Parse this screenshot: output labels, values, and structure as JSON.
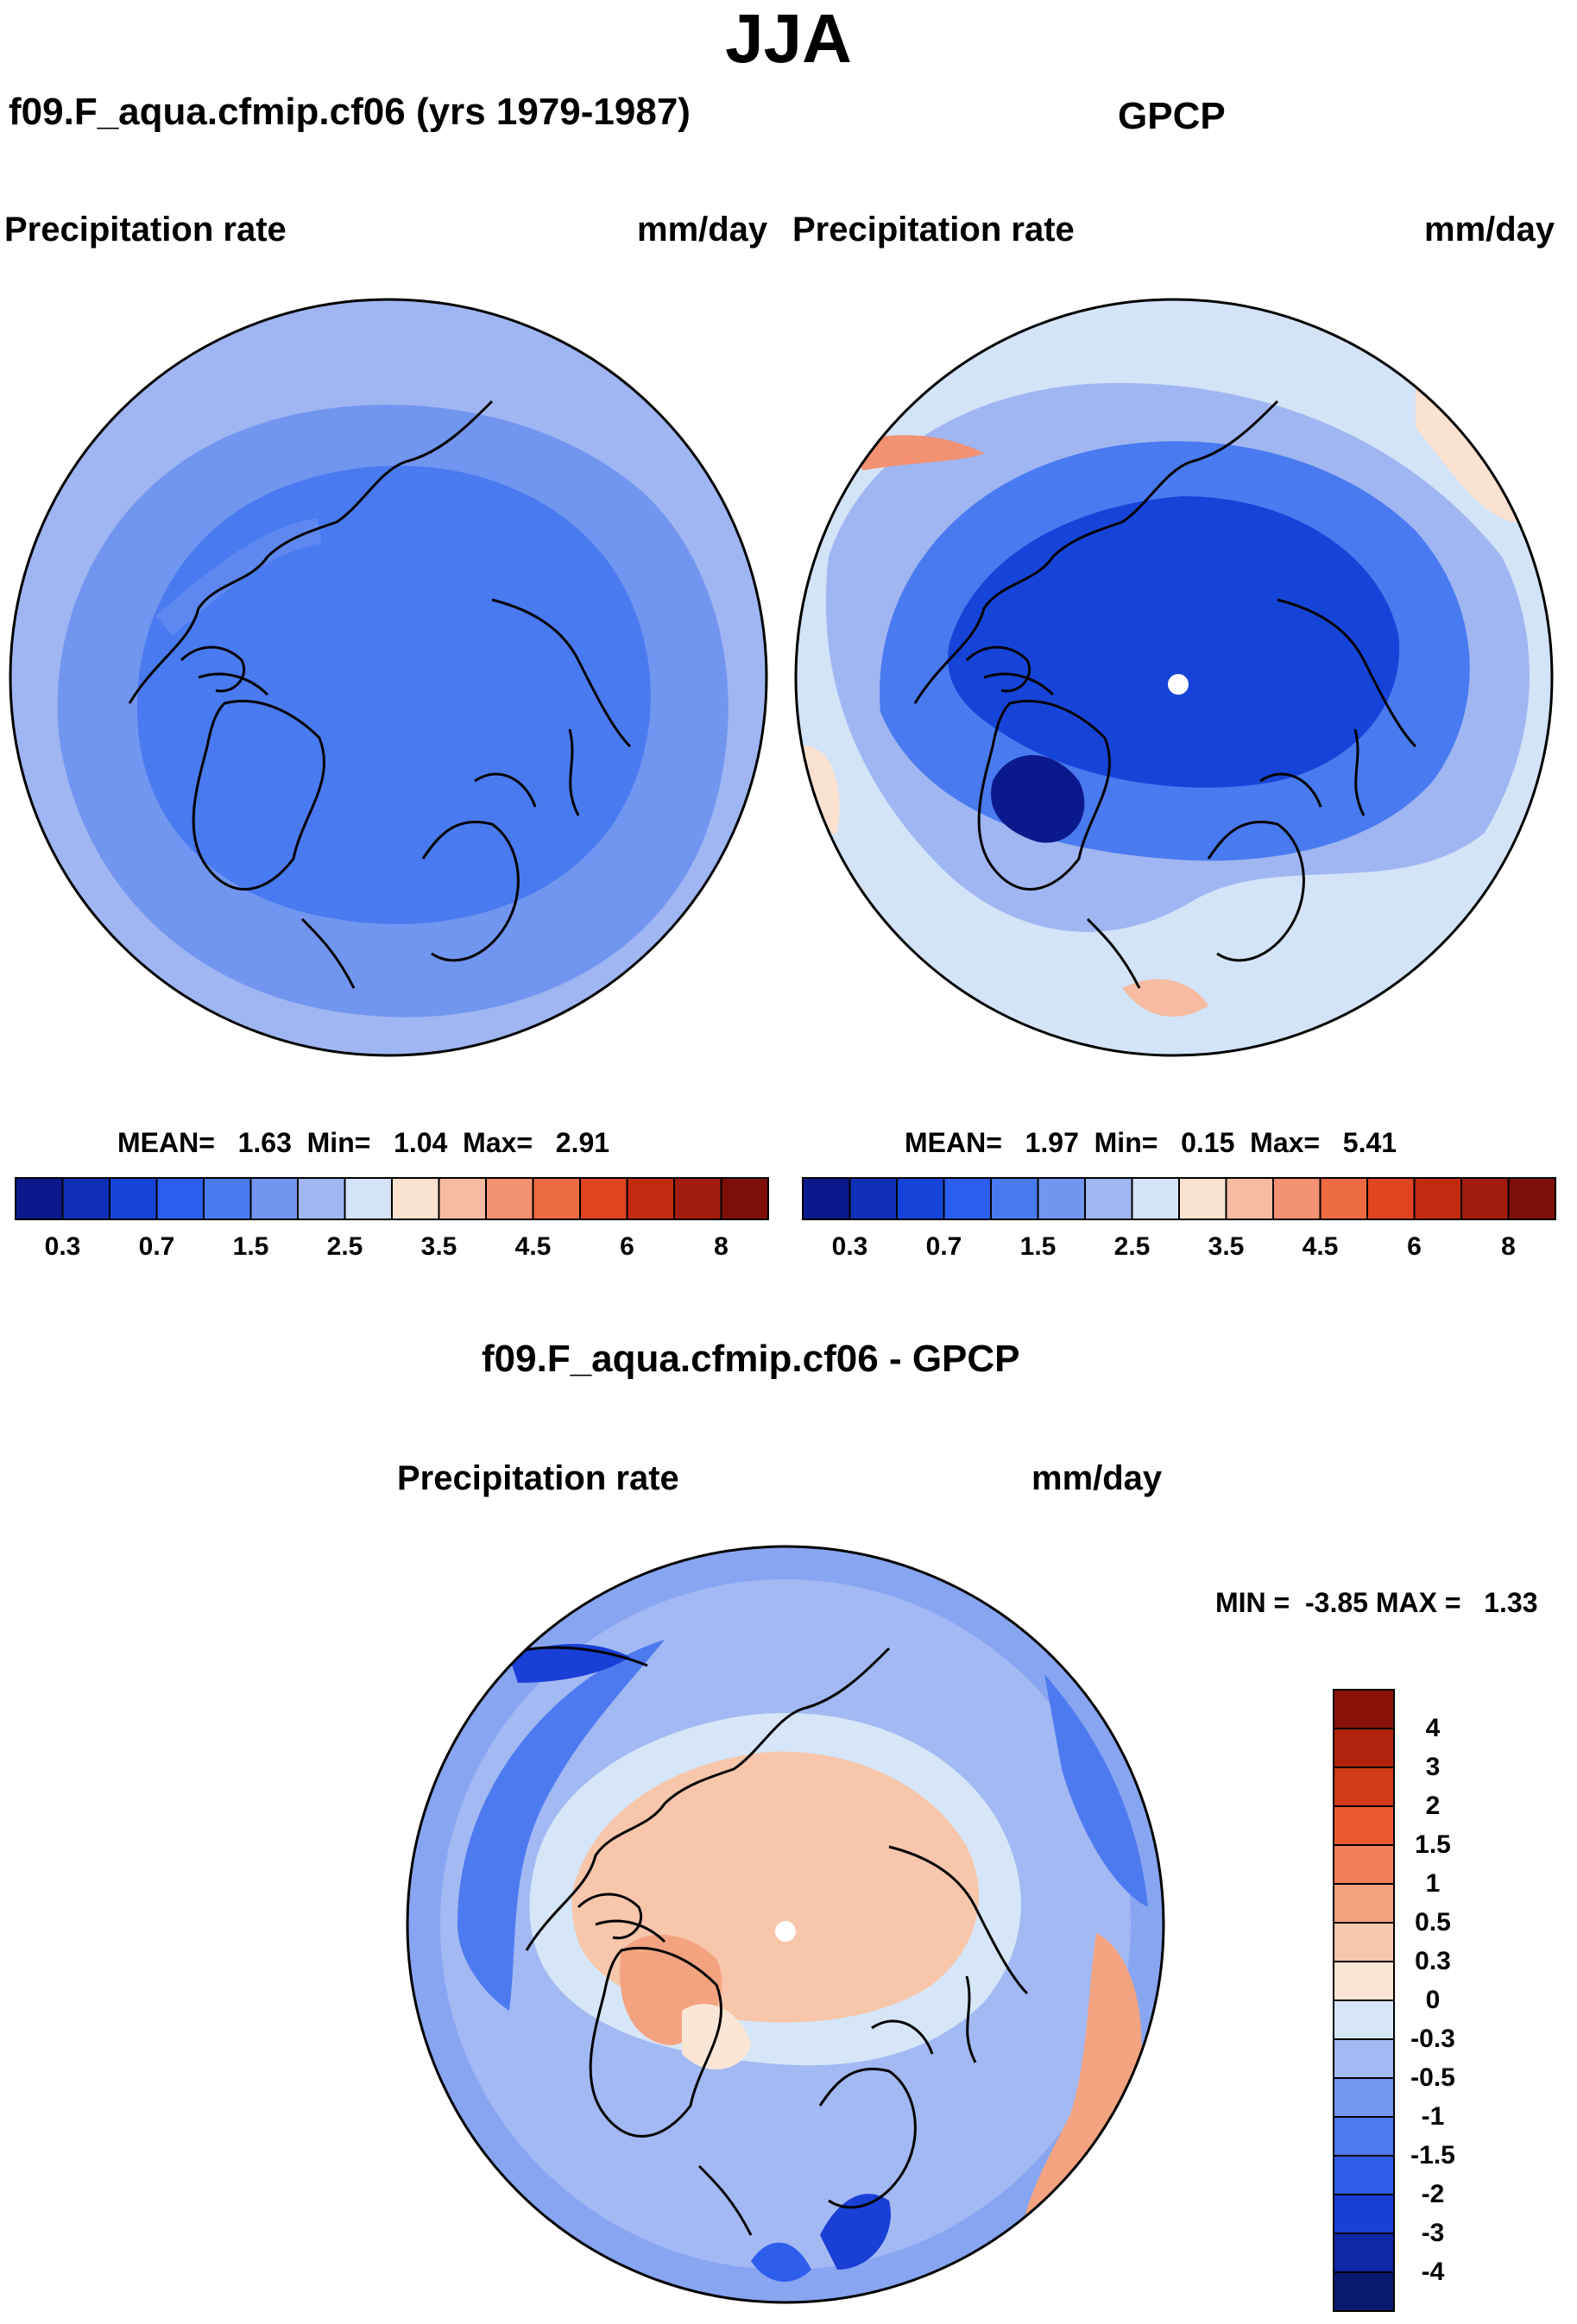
{
  "title": "JJA",
  "panels": {
    "model": {
      "header": "f09.F_aqua.cfmip.cf06 (yrs 1979-1987)",
      "left_label": "Precipitation rate",
      "right_label": "mm/day",
      "stats": "MEAN=   1.63  Min=   1.04  Max=   2.91",
      "mean": 1.63,
      "min": 1.04,
      "max": 2.91
    },
    "obs": {
      "header": "GPCP",
      "left_label": "Precipitation rate",
      "right_label": "mm/day",
      "stats": "MEAN=   1.97  Min=   0.15  Max=   5.41",
      "mean": 1.97,
      "min": 0.15,
      "max": 5.41
    },
    "diff": {
      "header": "f09.F_aqua.cfmip.cf06 - GPCP",
      "left_label": "Precipitation rate",
      "right_label": "mm/day",
      "stats": "MIN =  -3.85 MAX =   1.33",
      "min": -3.85,
      "max": 1.33
    }
  },
  "colorbar_main": {
    "colors": [
      "#0a1a8c",
      "#0f2fb8",
      "#1744d8",
      "#2a5ef0",
      "#4a7af0",
      "#7196f0",
      "#9fb6f2",
      "#d3e3f8",
      "#fbe1cf",
      "#f6bba0",
      "#f39173",
      "#ee6a42",
      "#e04420",
      "#c42a10",
      "#a31b0c",
      "#7d0f08"
    ],
    "tick_labels": [
      "0.3",
      "0.7",
      "1.5",
      "2.5",
      "3.5",
      "4.5",
      "6",
      "8"
    ]
  },
  "colorbar_diff": {
    "colors": [
      "#0a1a6e",
      "#0f28a8",
      "#1a3fd6",
      "#2f5ded",
      "#4e7af0",
      "#7497f0",
      "#a2b9f3",
      "#d6e6f8",
      "#fbe6d6",
      "#f7c6ab",
      "#f4a380",
      "#f17e56",
      "#ea5a30",
      "#d23a18",
      "#b0240d",
      "#8a1208"
    ],
    "tick_labels": [
      "4",
      "3",
      "2",
      "1.5",
      "1",
      "0.5",
      "0.3",
      "0",
      "-0.3",
      "-0.5",
      "-1",
      "-1.5",
      "-2",
      "-3",
      "-4"
    ]
  }
}
